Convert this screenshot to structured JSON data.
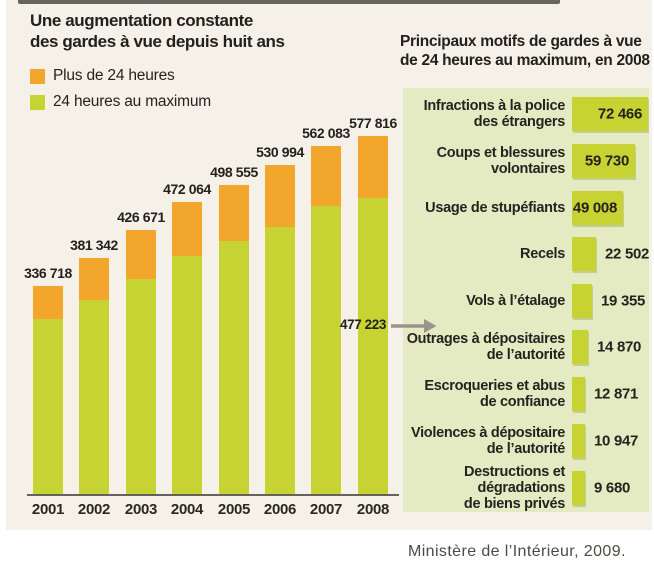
{
  "figure": {
    "left_chart": {
      "title_lines": [
        "Une augmentation constante",
        "des gardes à vue depuis huit ans"
      ],
      "legend": [
        {
          "label": "Plus de 24 heures",
          "color": "#f2a62b"
        },
        {
          "label": "24 heures au maximum",
          "color": "#c7d233"
        }
      ],
      "annotation_value": "477 223"
    },
    "right_panel": {
      "title_lines": [
        "Principaux motifs de gardes à vue",
        "de 24 heures au maximum, en 2008"
      ],
      "items": [
        {
          "lines": [
            "Infractions à la police",
            "des étrangers"
          ],
          "value_label": "72 466"
        },
        {
          "lines": [
            "Coups et blessures",
            "volontaires"
          ],
          "value_label": "59 730"
        },
        {
          "lines": [
            "Usage de stupéfiants"
          ],
          "value_label": "49 008"
        },
        {
          "lines": [
            "Recels"
          ],
          "value_label": "22 502"
        },
        {
          "lines": [
            "Vols à l’étalage"
          ],
          "value_label": "19 355"
        },
        {
          "lines": [
            "Outrages à dépositaires",
            "de l’autorité"
          ],
          "value_label": "14 870"
        },
        {
          "lines": [
            "Escroqueries et abus",
            "de confiance"
          ],
          "value_label": "12 871"
        },
        {
          "lines": [
            "Violences à dépositaire",
            "de l’autorité"
          ],
          "value_label": "10 947"
        },
        {
          "lines": [
            "Destructions et dégradations",
            "de biens privés"
          ],
          "value_label": "9 680"
        }
      ]
    },
    "source": "Ministère de l’Intérieur, 2009."
  },
  "chart_data": [
    {
      "type": "bar",
      "stacked": true,
      "title": "Une augmentation constante des gardes à vue depuis huit ans",
      "categories": [
        "2001",
        "2002",
        "2003",
        "2004",
        "2005",
        "2006",
        "2007",
        "2008"
      ],
      "series": [
        {
          "name": "24 heures au maximum",
          "color": "#c7d233",
          "values": [
            283000,
            314000,
            348000,
            385000,
            408000,
            432000,
            466000,
            477223
          ],
          "note": "estimated from segment proportions; 2008 value labeled 477 223 on chart"
        },
        {
          "name": "Plus de 24 heures",
          "color": "#f2a62b",
          "values": [
            53718,
            67342,
            78671,
            87064,
            90555,
            98994,
            96083,
            100593
          ],
          "note": "derived as total minus 24h-max segment"
        }
      ],
      "totals": [
        336718,
        381342,
        426671,
        472064,
        498555,
        530994,
        562083,
        577816
      ],
      "total_labels": [
        "336 718",
        "381 342",
        "426 671",
        "472 064",
        "498 555",
        "530 994",
        "562 083",
        "577 816"
      ],
      "annotation": {
        "text": "477 223",
        "refers_to": "2008 segment 24 heures au maximum"
      },
      "ylim": [
        0,
        600000
      ],
      "grid": false,
      "legend_position": "top-left"
    },
    {
      "type": "bar",
      "orientation": "horizontal",
      "title": "Principaux motifs de gardes à vue de 24 heures au maximum, en 2008",
      "categories": [
        "Infractions à la police des étrangers",
        "Coups et blessures volontaires",
        "Usage de stupéfiants",
        "Recels",
        "Vols à l’étalage",
        "Outrages à dépositaires de l’autorité",
        "Escroqueries et abus de confiance",
        "Violences à dépositaire de l’autorité",
        "Destructions et dégradations de biens privés"
      ],
      "values": [
        72466,
        59730,
        49008,
        22502,
        19355,
        14870,
        12871,
        10947,
        9680
      ],
      "value_labels": [
        "72 466",
        "59 730",
        "49 008",
        "22 502",
        "19 355",
        "14 870",
        "12 871",
        "10 947",
        "9 680"
      ],
      "xlim": [
        0,
        72466
      ]
    }
  ]
}
